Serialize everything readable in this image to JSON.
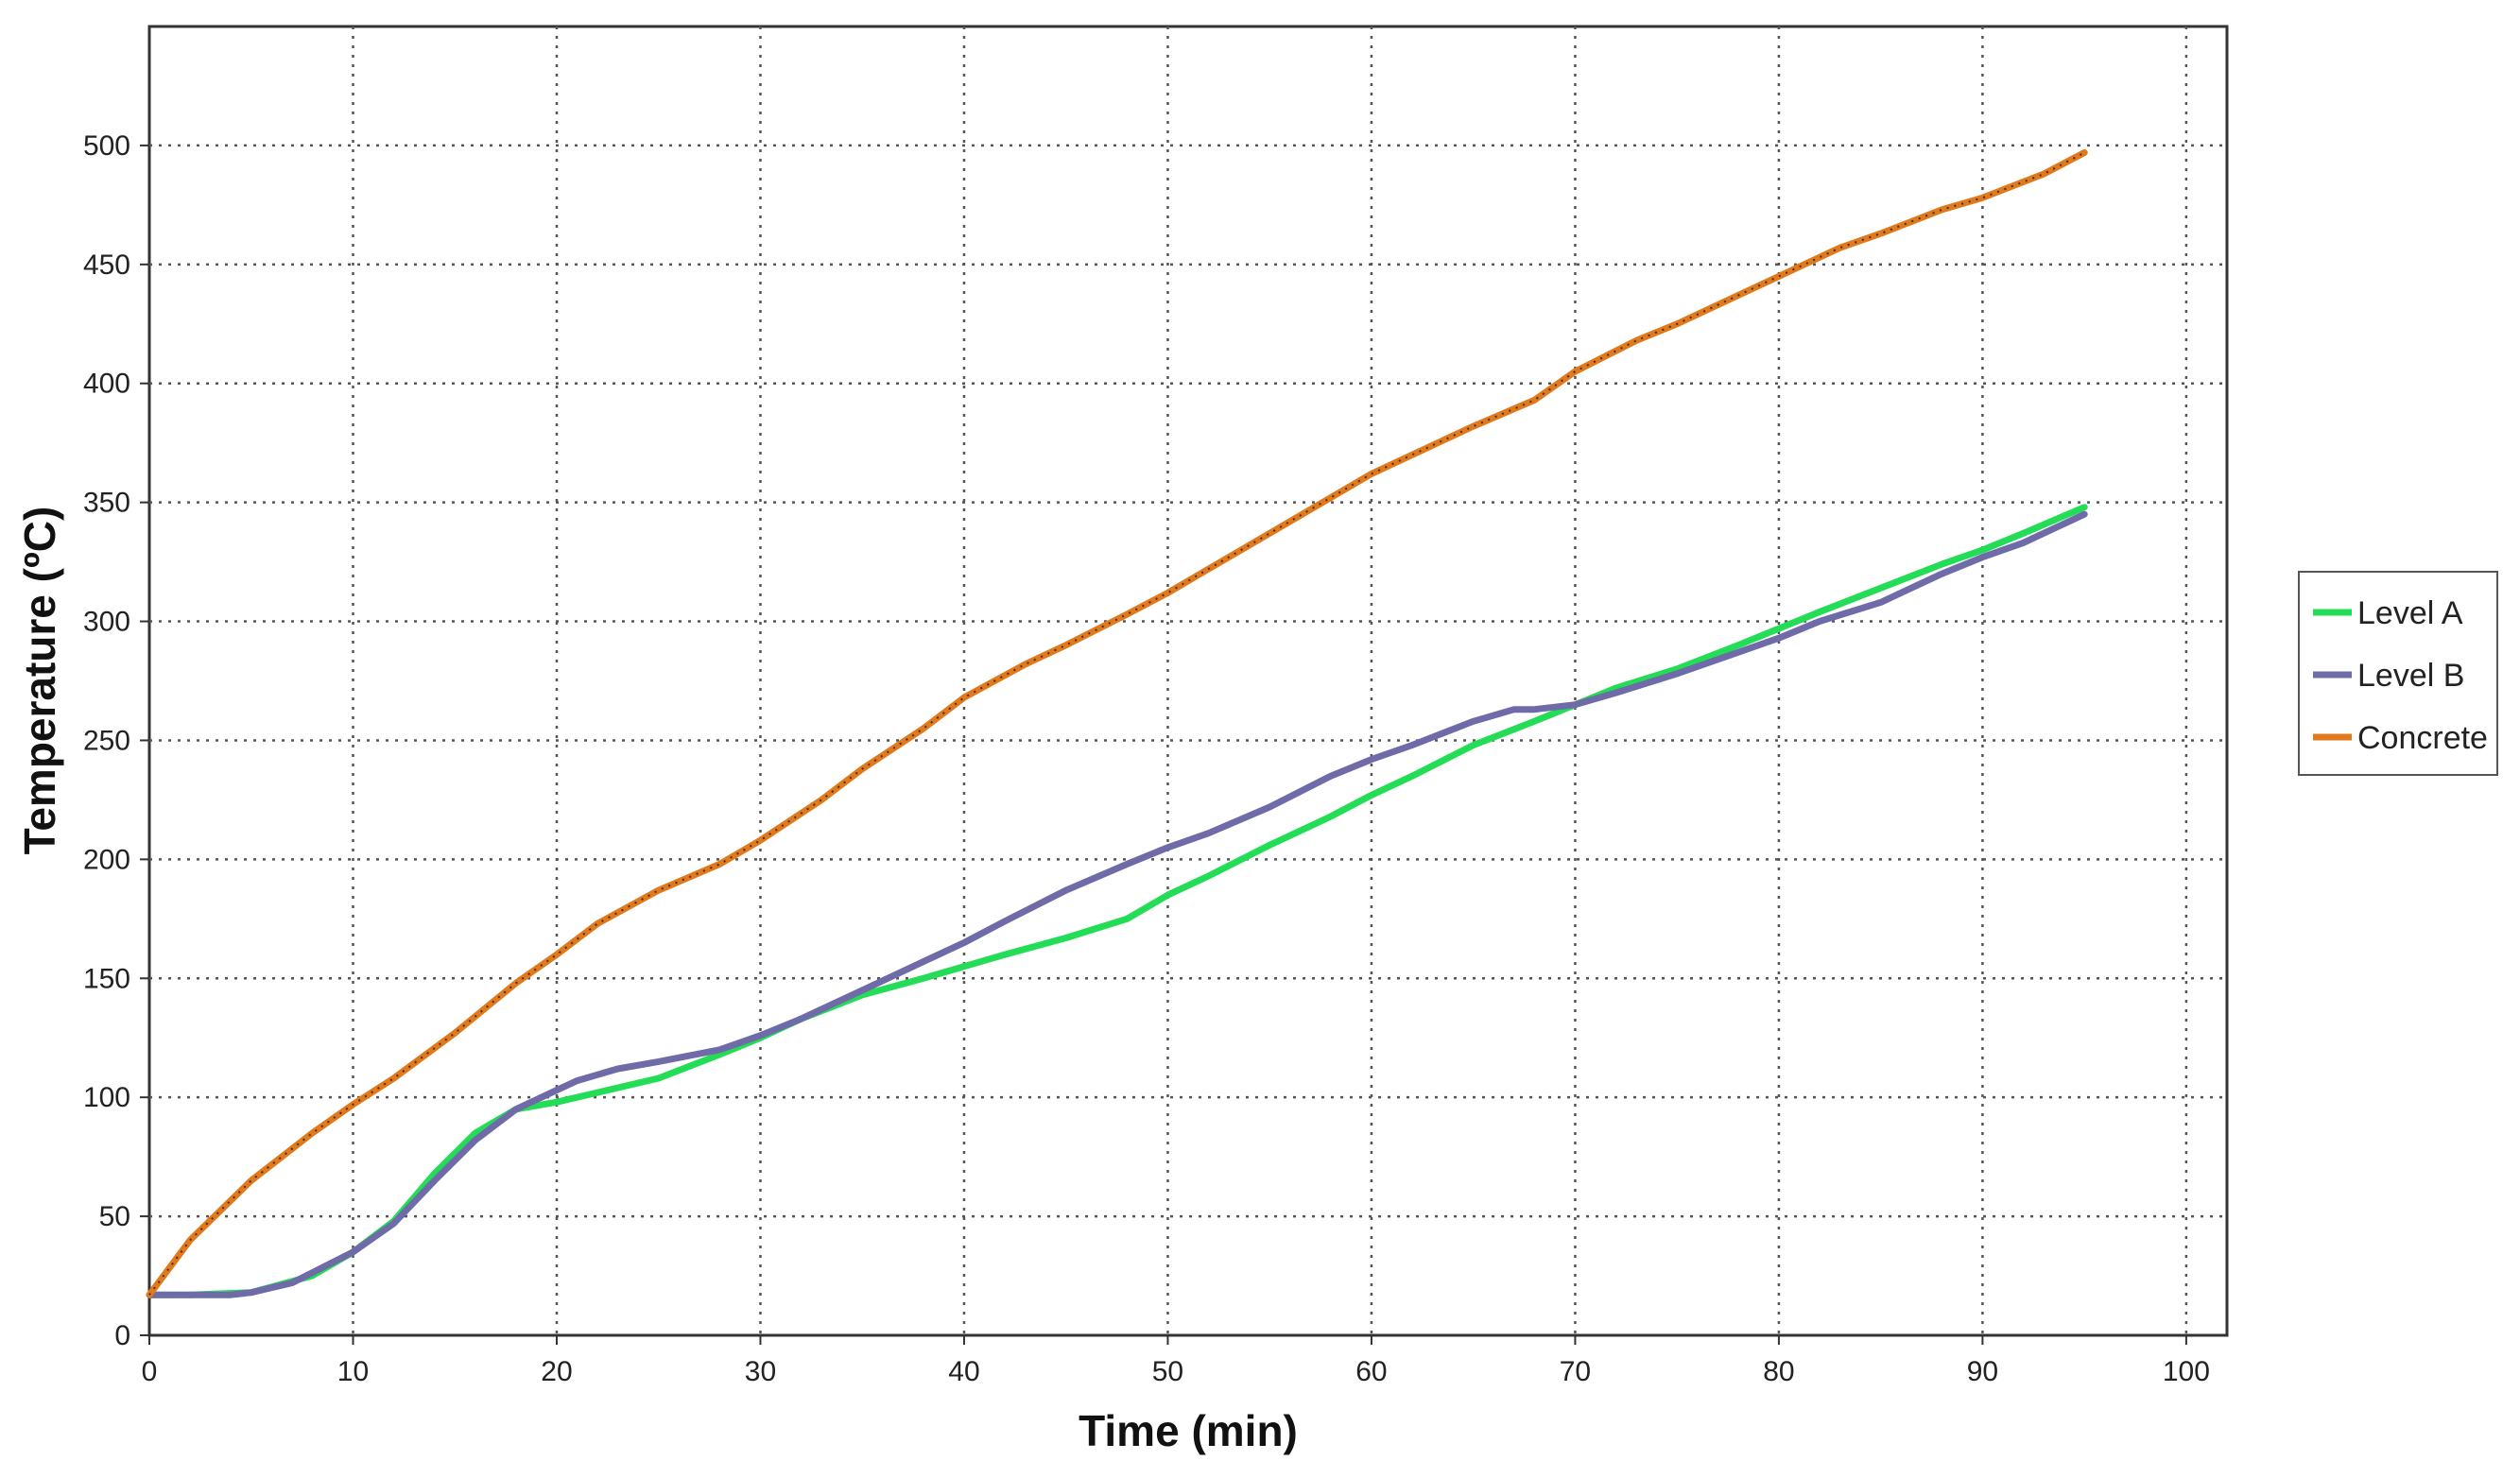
{
  "chart_data": {
    "type": "line",
    "title": "",
    "xlabel": "Time (min)",
    "ylabel": "Temperature (ºC)",
    "xlim": [
      0,
      102
    ],
    "ylim": [
      0,
      550
    ],
    "xticks": [
      0,
      10,
      20,
      30,
      40,
      50,
      60,
      70,
      80,
      90,
      100
    ],
    "yticks": [
      0,
      50,
      100,
      150,
      200,
      250,
      300,
      350,
      400,
      450,
      500
    ],
    "grid": true,
    "legend_position": "right",
    "series": [
      {
        "name": "Level A",
        "color": "#22dd55",
        "x": [
          0,
          2,
          5,
          8,
          10,
          12,
          14,
          16,
          18,
          20,
          22,
          25,
          28,
          30,
          32,
          35,
          38,
          40,
          42,
          45,
          48,
          50,
          52,
          55,
          58,
          60,
          62,
          65,
          68,
          70,
          72,
          75,
          78,
          80,
          82,
          85,
          88,
          90,
          92,
          95
        ],
        "y": [
          17,
          17,
          18,
          25,
          35,
          48,
          68,
          85,
          95,
          98,
          102,
          108,
          118,
          125,
          133,
          143,
          150,
          155,
          160,
          167,
          175,
          185,
          193,
          206,
          218,
          227,
          235,
          248,
          258,
          265,
          272,
          280,
          290,
          297,
          304,
          314,
          324,
          330,
          337,
          348
        ]
      },
      {
        "name": "Level B",
        "color": "#6f6aa8",
        "x": [
          0,
          2,
          4,
          5,
          7,
          10,
          12,
          14,
          16,
          18,
          20,
          21,
          23,
          25,
          28,
          30,
          32,
          35,
          38,
          40,
          42,
          45,
          48,
          50,
          52,
          55,
          58,
          60,
          62,
          65,
          67,
          68,
          70,
          72,
          75,
          78,
          80,
          82,
          85,
          88,
          90,
          92,
          95
        ],
        "y": [
          17,
          17,
          17,
          18,
          22,
          35,
          47,
          65,
          82,
          95,
          103,
          107,
          112,
          115,
          120,
          126,
          133,
          145,
          157,
          165,
          174,
          187,
          198,
          205,
          211,
          222,
          235,
          242,
          248,
          258,
          263,
          263,
          265,
          270,
          278,
          287,
          293,
          300,
          308,
          320,
          327,
          333,
          345
        ]
      },
      {
        "name": "Concrete",
        "color": "#e07a1c",
        "x": [
          0,
          2,
          5,
          8,
          10,
          12,
          15,
          18,
          20,
          22,
          25,
          28,
          30,
          33,
          35,
          38,
          40,
          43,
          45,
          48,
          50,
          52,
          55,
          58,
          60,
          63,
          65,
          68,
          70,
          73,
          75,
          78,
          80,
          83,
          85,
          88,
          90,
          93,
          95
        ],
        "y": [
          17,
          40,
          65,
          85,
          97,
          108,
          127,
          148,
          160,
          173,
          187,
          198,
          208,
          225,
          238,
          255,
          268,
          282,
          290,
          303,
          312,
          322,
          337,
          352,
          362,
          374,
          382,
          393,
          405,
          418,
          425,
          437,
          445,
          457,
          463,
          473,
          478,
          488,
          497
        ]
      }
    ]
  }
}
